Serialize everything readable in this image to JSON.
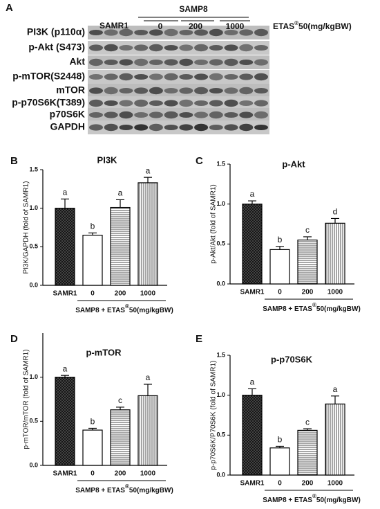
{
  "panel_a": {
    "label": "A",
    "groups": {
      "control": "SAMR1",
      "model": "SAMP8",
      "doses": [
        "0",
        "200",
        "1000"
      ]
    },
    "treatment": {
      "name": "ETAS",
      "mark": "®",
      "unit": "50(mg/kgBW)"
    },
    "rows": [
      "PI3K (p110α)",
      "p-Akt (S473)",
      "Akt",
      "p-mTOR(S2448)",
      "mTOR",
      "p-p70S6K(T389)",
      "p70S6K",
      "GAPDH"
    ]
  },
  "chart_data": [
    {
      "type": "bar",
      "panel": "B",
      "title": "PI3K",
      "ylabel": "PI3K/GAPDH (fold of SAMR1)",
      "categories": [
        "SAMR1",
        "0",
        "200",
        "1000"
      ],
      "group_label": {
        "prefix": "SAMP8 + ETAS",
        "mark": "®",
        "suffix": "50(mg/kgBW)"
      },
      "values": [
        1.0,
        0.65,
        1.01,
        1.33
      ],
      "errors": [
        0.12,
        0.03,
        0.1,
        0.07
      ],
      "annotations": [
        "a",
        "b",
        "a",
        "a"
      ],
      "ylim": [
        0,
        1.5
      ],
      "yticks": [
        {
          "value": 0,
          "label": "0.0"
        },
        {
          "value": 0.5,
          "label": "0.5"
        },
        {
          "value": 1,
          "label": "1.0"
        },
        {
          "value": 1.5,
          "label": "1.5"
        }
      ],
      "patterns": [
        "crosshatch",
        "none",
        "horizontal",
        "vertical"
      ],
      "color": "#000000"
    },
    {
      "type": "bar",
      "panel": "C",
      "title": "p-Akt",
      "ylabel": "p-Akt/Akt (fold of SAMR1)",
      "categories": [
        "SAMR1",
        "0",
        "200",
        "1000"
      ],
      "group_label": {
        "prefix": "SAMP8 + ETAS",
        "mark": "®",
        "suffix": "50(mg/kgBW)"
      },
      "values": [
        1.0,
        0.43,
        0.55,
        0.76
      ],
      "errors": [
        0.04,
        0.04,
        0.04,
        0.06
      ],
      "annotations": [
        "a",
        "b",
        "c",
        "d"
      ],
      "ylim": [
        0,
        1.5
      ],
      "yticks": [
        {
          "value": 0,
          "label": "0.0"
        },
        {
          "value": 0.5,
          "label": "0.5"
        },
        {
          "value": 1,
          "label": "1.0"
        },
        {
          "value": 1.5,
          "label": "1.5"
        }
      ],
      "patterns": [
        "crosshatch",
        "none",
        "horizontal",
        "vertical"
      ],
      "color": "#000000"
    },
    {
      "type": "bar",
      "panel": "D",
      "title": "p-mTOR",
      "ylabel": "p-mTOR/mTOR (fold of SAMR1)",
      "categories": [
        "SAMR1",
        "0",
        "200",
        "1000"
      ],
      "group_label": {
        "prefix": "SAMP8 + ETAS",
        "mark": "®",
        "suffix": "50(mg/kgBW)"
      },
      "values": [
        1.0,
        0.4,
        0.63,
        0.79
      ],
      "errors": [
        0.02,
        0.02,
        0.03,
        0.13
      ],
      "annotations": [
        "a",
        "b",
        "c",
        "a"
      ],
      "ylim": [
        0,
        1.5
      ],
      "yticks": [
        {
          "value": 0,
          "label": "0.0"
        },
        {
          "value": 0.5,
          "label": "0.5"
        },
        {
          "value": 1,
          "label": "1.0"
        }
      ],
      "patterns": [
        "crosshatch",
        "none",
        "horizontal",
        "vertical"
      ],
      "color": "#000000"
    },
    {
      "type": "bar",
      "panel": "E",
      "title": "p-p70S6K",
      "ylabel": "p-p70S6K/P70S6K (fold of SAMR1)",
      "categories": [
        "SAMR1",
        "0",
        "200",
        "1000"
      ],
      "group_label": {
        "prefix": "SAMP8 + ETAS",
        "mark": "®",
        "suffix": "50(mg/kgBW)"
      },
      "values": [
        1.0,
        0.34,
        0.56,
        0.89
      ],
      "errors": [
        0.08,
        0.02,
        0.02,
        0.1
      ],
      "annotations": [
        "a",
        "b",
        "c",
        "a"
      ],
      "ylim": [
        0,
        1.5
      ],
      "yticks": [
        {
          "value": 0,
          "label": "0.0"
        },
        {
          "value": 0.5,
          "label": "0.5"
        },
        {
          "value": 1,
          "label": "1.0"
        },
        {
          "value": 1.5,
          "label": "1.5"
        }
      ],
      "patterns": [
        "crosshatch",
        "none",
        "horizontal",
        "vertical"
      ],
      "color": "#000000"
    }
  ]
}
